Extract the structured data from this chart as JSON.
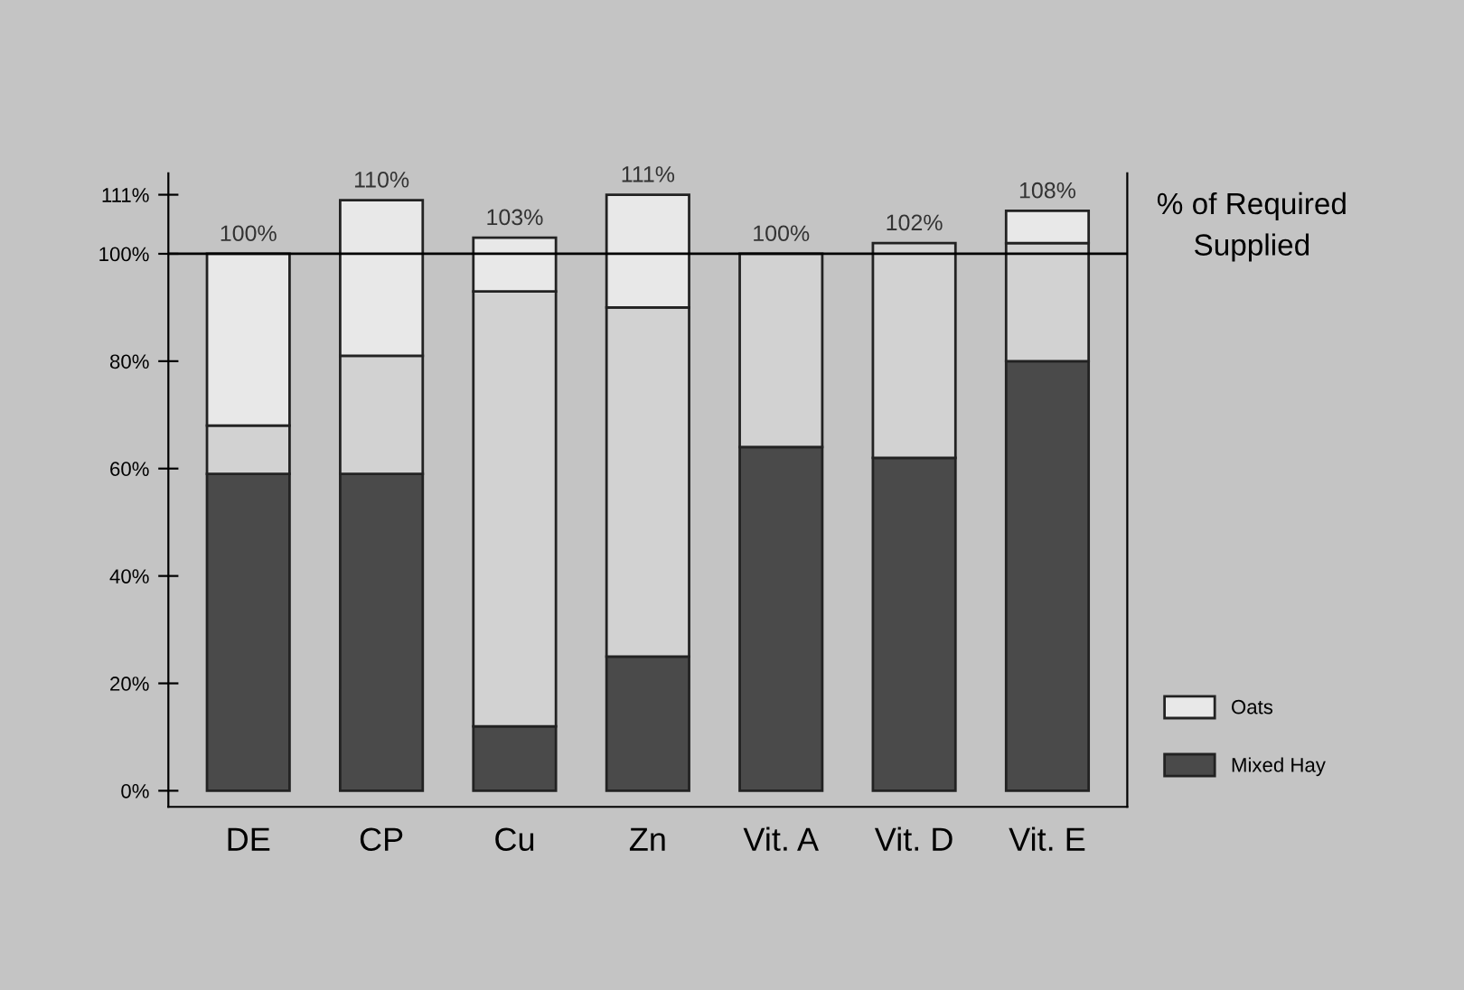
{
  "chart_data": {
    "type": "bar",
    "stacked": true,
    "ylabel": "% of Required\nSupplied",
    "categories": [
      "DE",
      "CP",
      "Cu",
      "Zn",
      "Vit. A",
      "Vit. D",
      "Vit. E"
    ],
    "series": [
      {
        "name": "Mixed Hay",
        "color": "#4a4a4a",
        "values": [
          59,
          59,
          12,
          25,
          64,
          62,
          80
        ]
      },
      {
        "color": "#d2d2d2",
        "values": [
          9,
          22,
          81,
          65,
          36,
          40,
          22
        ]
      },
      {
        "name": "Oats",
        "color": "#e8e8e8",
        "values": [
          32,
          29,
          10,
          21,
          null,
          null,
          6
        ]
      }
    ],
    "totals": [
      "100%",
      "110%",
      "103%",
      "111%",
      "100%",
      "102%",
      "108%"
    ],
    "ylim": [
      -3,
      115
    ],
    "yticks": [
      {
        "value": 0,
        "label": "0%"
      },
      {
        "value": 20,
        "label": "20%"
      },
      {
        "value": 40,
        "label": "40%"
      },
      {
        "value": 60,
        "label": "60%"
      },
      {
        "value": 80,
        "label": "80%"
      },
      {
        "value": 100,
        "label": "100%"
      },
      {
        "value": 111,
        "label": "111%"
      }
    ],
    "ref_lines": [
      {
        "axis": "y",
        "value": 100,
        "color": "#000000"
      }
    ],
    "grid": false,
    "legend": "right"
  }
}
